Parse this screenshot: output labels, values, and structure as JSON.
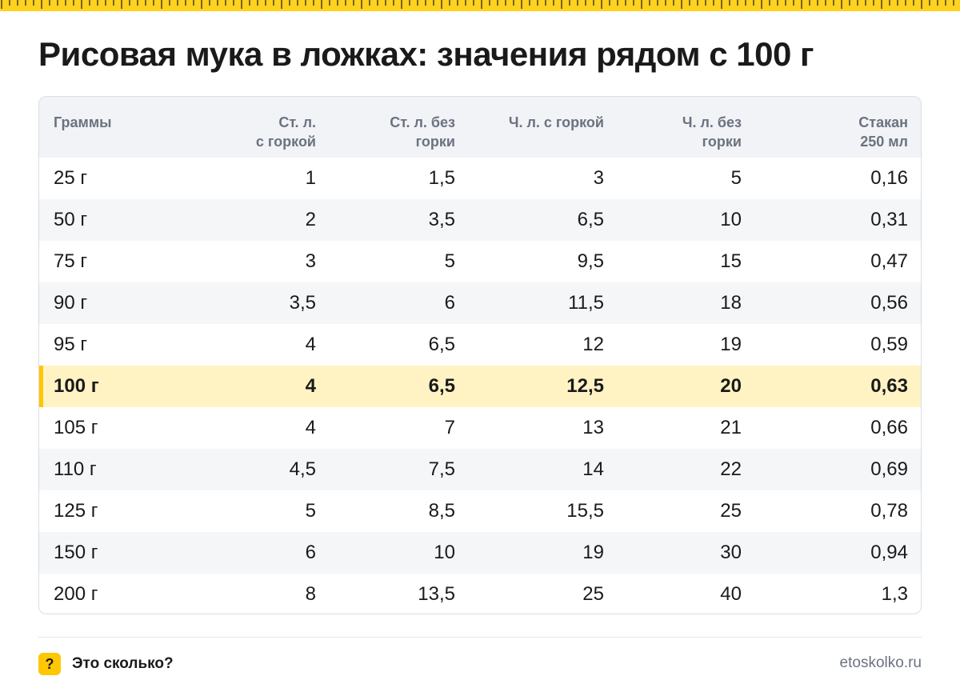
{
  "title": "Рисовая мука в ложках: значения рядом с 100 г",
  "colors": {
    "accent": "#ffc700",
    "highlight_row": "#fff3c4",
    "header_bg": "#f1f3f6"
  },
  "table": {
    "headers": [
      [
        "Граммы"
      ],
      [
        "Ст. л.",
        "с горкой"
      ],
      [
        "Ст. л. без",
        "горки"
      ],
      [
        "Ч. л. с горкой"
      ],
      [
        "Ч. л. без",
        "горки"
      ],
      [
        "Стакан",
        "250 мл"
      ]
    ],
    "highlight_index": 5,
    "rows": [
      [
        "25 г",
        "1",
        "1,5",
        "3",
        "5",
        "0,16"
      ],
      [
        "50 г",
        "2",
        "3,5",
        "6,5",
        "10",
        "0,31"
      ],
      [
        "75 г",
        "3",
        "5",
        "9,5",
        "15",
        "0,47"
      ],
      [
        "90 г",
        "3,5",
        "6",
        "11,5",
        "18",
        "0,56"
      ],
      [
        "95 г",
        "4",
        "6,5",
        "12",
        "19",
        "0,59"
      ],
      [
        "100 г",
        "4",
        "6,5",
        "12,5",
        "20",
        "0,63"
      ],
      [
        "105 г",
        "4",
        "7",
        "13",
        "21",
        "0,66"
      ],
      [
        "110 г",
        "4,5",
        "7,5",
        "14",
        "22",
        "0,69"
      ],
      [
        "125 г",
        "5",
        "8,5",
        "15,5",
        "25",
        "0,78"
      ],
      [
        "150 г",
        "6",
        "10",
        "19",
        "30",
        "0,94"
      ],
      [
        "200 г",
        "8",
        "13,5",
        "25",
        "40",
        "1,3"
      ]
    ]
  },
  "footer": {
    "badge_symbol": "?",
    "brand": "Это сколько?",
    "site": "etoskolko.ru"
  },
  "icons": {
    "badge": "question-badge-icon",
    "ruler": "ruler-strip"
  }
}
